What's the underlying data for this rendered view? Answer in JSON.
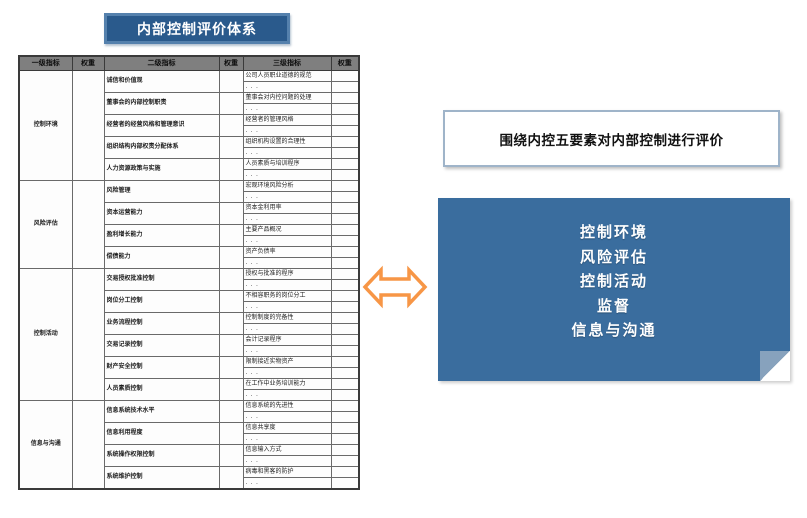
{
  "title": "内部控制评价体系",
  "right": {
    "statement": "围绕内控五要素对内部控制进行评价",
    "five_elements": [
      "控制环境",
      "风险评估",
      "控制活动",
      "监督",
      "信息与沟通"
    ]
  },
  "table": {
    "headers": [
      "一级指标",
      "权重",
      "二级指标",
      "权重",
      "三级指标",
      "权重"
    ],
    "weight_value": "",
    "sections": [
      {
        "level1": "控制环境",
        "rows": [
          {
            "level2": "诚信和价值观",
            "level3": [
              "公司人员职业道德的规范",
              ". . ."
            ]
          },
          {
            "level2": "董事会的内部控制职责",
            "level3": [
              "董事会对内控问题的处理",
              ". . ."
            ]
          },
          {
            "level2": "经营者的经营风格和管理意识",
            "level3": [
              "经营者的管理风格",
              ". . ."
            ]
          },
          {
            "level2": "组织结构内部权责分配体系",
            "level3": [
              "组织机构设置的合理性",
              ". . ."
            ]
          },
          {
            "level2": "人力资源政策与实施",
            "level3": [
              "人员素质与培训程序",
              ". . ."
            ]
          }
        ]
      },
      {
        "level1": "风险评估",
        "rows": [
          {
            "level2": "风险管理",
            "level3": [
              "宏观环境风险分析",
              ". . ."
            ]
          },
          {
            "level2": "资本运营能力",
            "level3": [
              "资本金利用率",
              ". . ."
            ]
          },
          {
            "level2": "盈利增长能力",
            "level3": [
              "主要产品概况",
              ". . ."
            ]
          },
          {
            "level2": "偿债能力",
            "level3": [
              "资产负债率",
              ". . ."
            ]
          }
        ]
      },
      {
        "level1": "控制活动",
        "rows": [
          {
            "level2": "交易授权批准控制",
            "level3": [
              "授权与批准的程序",
              ". . ."
            ]
          },
          {
            "level2": "岗位分工控制",
            "level3": [
              "不相容职务的岗位分工",
              ". . ."
            ]
          },
          {
            "level2": "业务流程控制",
            "level3": [
              "控制制度的完备性",
              ". . ."
            ]
          },
          {
            "level2": "交易记录控制",
            "level3": [
              "会计记录程序",
              ". . ."
            ]
          },
          {
            "level2": "财产安全控制",
            "level3": [
              "限制接近实物资产",
              ". . ."
            ]
          },
          {
            "level2": "人员素质控制",
            "level3": [
              "在工作中业务培训能力",
              ". . ."
            ]
          }
        ]
      },
      {
        "level1": "信息与沟通",
        "rows": [
          {
            "level2": "信息系统技术水平",
            "level3": [
              "信息系统的先进性",
              ". . ."
            ]
          },
          {
            "level2": "信息利用程度",
            "level3": [
              "信息共享度",
              ". . ."
            ]
          },
          {
            "level2": "系统操作权限控制",
            "level3": [
              "信息输入方式",
              ". . ."
            ]
          },
          {
            "level2": "系统维护控制",
            "level3": [
              "病毒和黑客的防护",
              ". . ."
            ]
          }
        ]
      }
    ]
  },
  "icons": {
    "double_arrow": "left-right-arrow"
  },
  "colors": {
    "title_box_blue": "#2a5a8c",
    "title_box_border": "#5581ad",
    "panel_blue": "#3a6d9e",
    "arrow_orange": "#f79646",
    "header_gray": "#7f7f7f",
    "statement_border": "#9fb4c9"
  }
}
